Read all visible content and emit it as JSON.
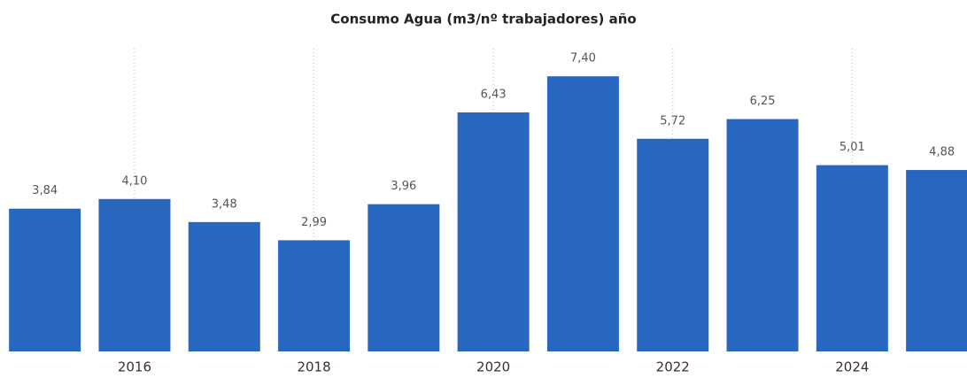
{
  "chart_data": {
    "type": "bar",
    "title": "Consumo Agua (m3/nº trabajadores) año",
    "categories": [
      null,
      "2016",
      null,
      "2018",
      null,
      "2020",
      null,
      "2022",
      null,
      "2024",
      null
    ],
    "values": [
      3.84,
      4.1,
      3.48,
      2.99,
      3.96,
      6.43,
      7.4,
      5.72,
      6.25,
      5.01,
      4.88
    ],
    "value_labels": [
      "3,84",
      "4,10",
      "3,48",
      "2,99",
      "3,96",
      "6,43",
      "7,40",
      "5,72",
      "6,25",
      "5,01",
      "4,88"
    ],
    "color": "#2767c0",
    "ylim": [
      0,
      8
    ],
    "grid": true
  }
}
